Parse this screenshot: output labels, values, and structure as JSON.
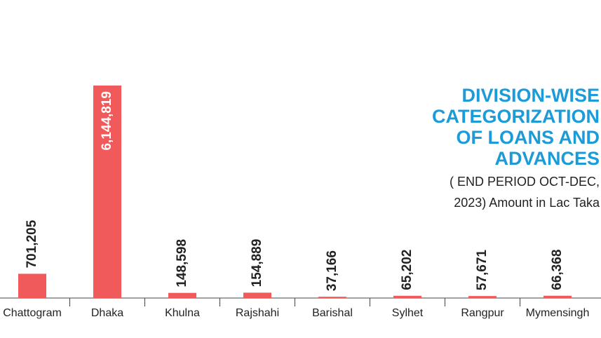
{
  "chart_data": {
    "type": "bar",
    "title": [
      "DIVISION-WISE",
      "CATEGORIZATION",
      "OF LOANS AND",
      "ADVANCES"
    ],
    "subtitle": [
      "( END PERIOD OCT-DEC,",
      "2023)  Amount in Lac Taka"
    ],
    "categories": [
      "Chattogram",
      "Dhaka",
      "Khulna",
      "Rajshahi",
      "Barishal",
      "Sylhet",
      "Rangpur",
      "Mymensingh"
    ],
    "values": [
      701205,
      6144819,
      148598,
      154889,
      37166,
      65202,
      57671,
      66368
    ],
    "value_labels": [
      "701,205",
      "6,144,819",
      "148,598",
      "154,889",
      "37,166",
      "65,202",
      "57,671",
      "66,368"
    ],
    "color": "#f05a5a"
  }
}
